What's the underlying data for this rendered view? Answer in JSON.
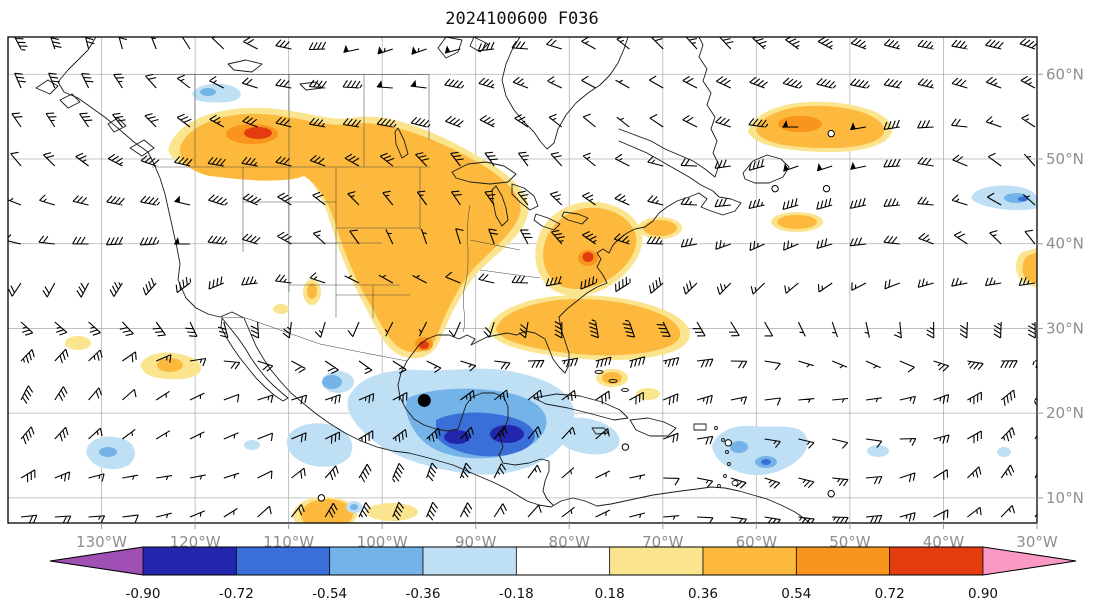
{
  "chart_data": {
    "type": "heatmap",
    "title": "2024100600 F036",
    "description": "Weather-model forecast map: shaded anomaly field (colorbar -0.90 to 0.90) with wind barbs over North America and the western Atlantic",
    "x_tick_labels": [
      "130°W",
      "120°W",
      "110°W",
      "100°W",
      "90°W",
      "80°W",
      "70°W",
      "60°W",
      "50°W",
      "40°W",
      "30°W"
    ],
    "x_tick_values_deg_w": [
      130,
      120,
      110,
      100,
      90,
      80,
      70,
      60,
      50,
      40,
      30
    ],
    "y_tick_labels": [
      "10°N",
      "20°N",
      "30°N",
      "40°N",
      "50°N",
      "60°N"
    ],
    "y_tick_values_deg_n": [
      10,
      20,
      30,
      40,
      50,
      60
    ],
    "lon_range_deg_w": [
      140,
      29.5
    ],
    "lat_range_deg_n": [
      7,
      64.4
    ],
    "grid": "10-degree latitude/longitude graticule, solid light gray",
    "colorbar": {
      "orientation": "horizontal",
      "extend": "both",
      "tick_labels": [
        "-0.90",
        "-0.72",
        "-0.54",
        "-0.36",
        "-0.18",
        "0.18",
        "0.36",
        "0.54",
        "0.72",
        "0.90"
      ],
      "levels": [
        -0.9,
        -0.72,
        -0.54,
        -0.36,
        -0.18,
        0.18,
        0.36,
        0.54,
        0.72,
        0.9
      ],
      "colors": [
        "#a050b4",
        "#2126ad",
        "#3a6fd8",
        "#74b3e8",
        "#bfdff4",
        "#ffffff",
        "#fbe48e",
        "#fdb93d",
        "#f9941c",
        "#e23c0f",
        "#f999c4"
      ]
    },
    "overlays": {
      "wind_barbs": "black wind barbs on a regular grid covering the whole domain; westerlies in mid-latitudes, easterly trades in the tropics",
      "storm_marker": {
        "symbol": "filled-black-circle",
        "lon_w": 95.5,
        "lat_n": 21.5
      },
      "calm_markers": [
        {
          "lon_w": 52,
          "lat_n": 53
        },
        {
          "lon_w": 58,
          "lat_n": 46.5
        },
        {
          "lon_w": 52.5,
          "lat_n": 46.5
        },
        {
          "lon_w": 74,
          "lat_n": 16
        },
        {
          "lon_w": 63,
          "lat_n": 16.5
        },
        {
          "lon_w": 52,
          "lat_n": 10.5
        },
        {
          "lon_w": 106.5,
          "lat_n": 10
        }
      ]
    },
    "shaded_regions": [
      {
        "sign": "positive",
        "range": "0.18 to 0.90",
        "location": "southwest Canada across central/eastern United States (about 115-80W, 30-55N)",
        "peak": "above 0.72 near 110W 52N"
      },
      {
        "sign": "positive",
        "range": "0.18 to 0.90",
        "location": "US mid-Atlantic coast near 78W 38N"
      },
      {
        "sign": "positive",
        "range": "0.18 to 0.54",
        "location": "western Atlantic band near 30N, 85-55W"
      },
      {
        "sign": "positive",
        "range": "0.18 to 0.72",
        "location": "North Atlantic near 50-55N, 60-45W"
      },
      {
        "sign": "negative",
        "range": "-0.18 to -0.90",
        "location": "Gulf of Mexico and northwest Caribbean (about 95-70W, 15-25N)",
        "peak": "below -0.72 near 84W 17N"
      },
      {
        "sign": "negative",
        "range": "-0.18 to -0.54",
        "location": "eastern Caribbean near 60-52W 15N"
      },
      {
        "sign": "negative",
        "range": "-0.18 to -0.36",
        "location": "scattered patches near 118W 55N, 35W 45N, 128W 15N"
      }
    ]
  }
}
